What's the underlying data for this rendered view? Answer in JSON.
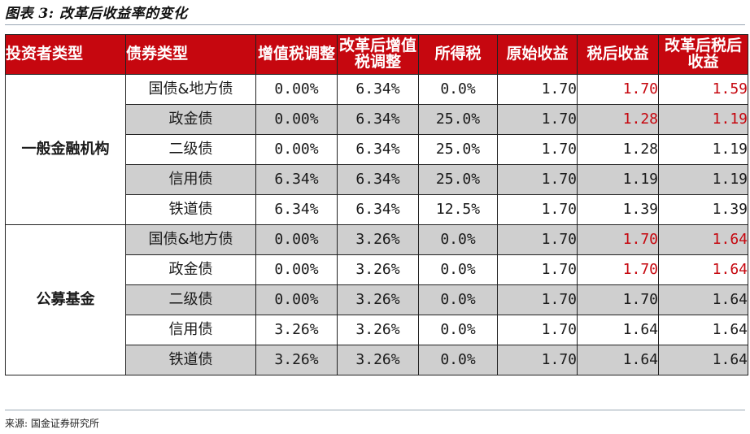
{
  "title": "图表 3:  改革后收益率的变化",
  "headers": [
    "投资者类型",
    "债券类型",
    "增值税调整",
    "改革后增值税调整",
    "所得税",
    "原始收益",
    "税后收益",
    "改革后税后收益"
  ],
  "groups": [
    {
      "investor": "一般金融机构",
      "rows": [
        {
          "bond": "国债&地方债",
          "vat": "0.00%",
          "vat_reform": "6.34%",
          "income_tax": "0.0%",
          "orig": "1.70",
          "after_tax": "1.70",
          "reform_after_tax": "1.59",
          "after_tax_red": true,
          "reform_red": true,
          "shaded": false
        },
        {
          "bond": "政金债",
          "vat": "0.00%",
          "vat_reform": "6.34%",
          "income_tax": "25.0%",
          "orig": "1.70",
          "after_tax": "1.28",
          "reform_after_tax": "1.19",
          "after_tax_red": true,
          "reform_red": true,
          "shaded": true
        },
        {
          "bond": "二级债",
          "vat": "0.00%",
          "vat_reform": "6.34%",
          "income_tax": "25.0%",
          "orig": "1.70",
          "after_tax": "1.28",
          "reform_after_tax": "1.19",
          "after_tax_red": false,
          "reform_red": false,
          "shaded": false
        },
        {
          "bond": "信用债",
          "vat": "6.34%",
          "vat_reform": "6.34%",
          "income_tax": "25.0%",
          "orig": "1.70",
          "after_tax": "1.19",
          "reform_after_tax": "1.19",
          "after_tax_red": false,
          "reform_red": false,
          "shaded": true
        },
        {
          "bond": "铁道债",
          "vat": "6.34%",
          "vat_reform": "6.34%",
          "income_tax": "12.5%",
          "orig": "1.70",
          "after_tax": "1.39",
          "reform_after_tax": "1.39",
          "after_tax_red": false,
          "reform_red": false,
          "shaded": false
        }
      ]
    },
    {
      "investor": "公募基金",
      "rows": [
        {
          "bond": "国债&地方债",
          "vat": "0.00%",
          "vat_reform": "3.26%",
          "income_tax": "0.0%",
          "orig": "1.70",
          "after_tax": "1.70",
          "reform_after_tax": "1.64",
          "after_tax_red": true,
          "reform_red": true,
          "shaded": true
        },
        {
          "bond": "政金债",
          "vat": "0.00%",
          "vat_reform": "3.26%",
          "income_tax": "0.0%",
          "orig": "1.70",
          "after_tax": "1.70",
          "reform_after_tax": "1.64",
          "after_tax_red": true,
          "reform_red": true,
          "shaded": false
        },
        {
          "bond": "二级债",
          "vat": "0.00%",
          "vat_reform": "3.26%",
          "income_tax": "0.0%",
          "orig": "1.70",
          "after_tax": "1.70",
          "reform_after_tax": "1.64",
          "after_tax_red": false,
          "reform_red": false,
          "shaded": true
        },
        {
          "bond": "信用债",
          "vat": "3.26%",
          "vat_reform": "3.26%",
          "income_tax": "0.0%",
          "orig": "1.70",
          "after_tax": "1.64",
          "reform_after_tax": "1.64",
          "after_tax_red": false,
          "reform_red": false,
          "shaded": false
        },
        {
          "bond": "铁道债",
          "vat": "3.26%",
          "vat_reform": "3.26%",
          "income_tax": "0.0%",
          "orig": "1.70",
          "after_tax": "1.64",
          "reform_after_tax": "1.64",
          "after_tax_red": false,
          "reform_red": false,
          "shaded": true
        }
      ]
    }
  ],
  "source": "来源:  国金证券研究所",
  "colors": {
    "header_bg": "#c6070f",
    "highlight_text": "#c6070f",
    "shade_bg": "#cfcfcf"
  }
}
